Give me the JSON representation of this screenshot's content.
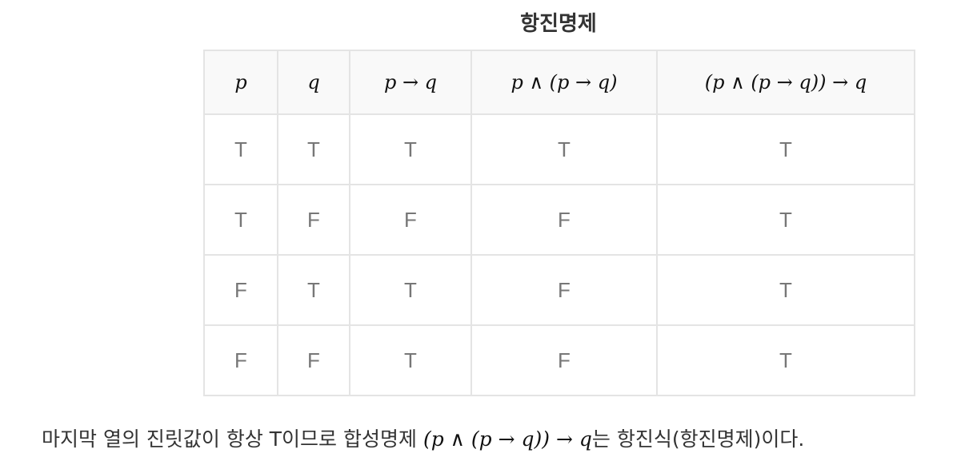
{
  "caption": "항진명제",
  "table": {
    "headers": [
      "p",
      "q",
      "p → q",
      "p ∧ (p → q)",
      "(p ∧ (p → q)) → q"
    ],
    "rows": [
      [
        "T",
        "T",
        "T",
        "T",
        "T"
      ],
      [
        "T",
        "F",
        "F",
        "F",
        "T"
      ],
      [
        "F",
        "T",
        "T",
        "F",
        "T"
      ],
      [
        "F",
        "F",
        "T",
        "F",
        "T"
      ]
    ]
  },
  "conclusion": {
    "before": "마지막 열의 진릿값이 항상 T이므로 합성명제 ",
    "formula": "(p ∧ (p → q)) → q",
    "after": "는 항진식(항진명제)이다."
  }
}
